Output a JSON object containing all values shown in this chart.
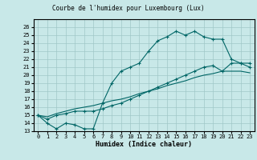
{
  "title": "Courbe de l'humidex pour Luxembourg (Lux)",
  "xlabel": "Humidex (Indice chaleur)",
  "bg_color": "#c8e8e8",
  "grid_color": "#a0c8c8",
  "line_color": "#006666",
  "xlim": [
    -0.5,
    23.5
  ],
  "ylim": [
    13,
    27
  ],
  "xticks": [
    0,
    1,
    2,
    3,
    4,
    5,
    6,
    7,
    8,
    9,
    10,
    11,
    12,
    13,
    14,
    15,
    16,
    17,
    18,
    19,
    20,
    21,
    22,
    23
  ],
  "yticks": [
    13,
    14,
    15,
    16,
    17,
    18,
    19,
    20,
    21,
    22,
    23,
    24,
    25,
    26
  ],
  "curve1_x": [
    0,
    1,
    2,
    3,
    4,
    5,
    6,
    7,
    8,
    9,
    10,
    11,
    12,
    13,
    14,
    15,
    16,
    17,
    18,
    19,
    20,
    21,
    22,
    23
  ],
  "curve1_y": [
    15.0,
    14.0,
    13.3,
    14.0,
    13.8,
    13.3,
    13.3,
    16.5,
    19.0,
    20.5,
    21.0,
    21.5,
    23.0,
    24.3,
    24.8,
    25.5,
    25.0,
    25.5,
    24.8,
    24.5,
    24.5,
    22.0,
    21.5,
    21.0
  ],
  "curve2_x": [
    0,
    1,
    2,
    3,
    4,
    5,
    6,
    7,
    8,
    9,
    10,
    11,
    12,
    13,
    14,
    15,
    16,
    17,
    18,
    19,
    20,
    21,
    22,
    23
  ],
  "curve2_y": [
    15.0,
    14.5,
    15.0,
    15.2,
    15.5,
    15.5,
    15.5,
    15.8,
    16.2,
    16.5,
    17.0,
    17.5,
    18.0,
    18.5,
    19.0,
    19.5,
    20.0,
    20.5,
    21.0,
    21.2,
    20.5,
    21.5,
    21.5,
    21.5
  ],
  "curve3_x": [
    0,
    1,
    2,
    3,
    4,
    5,
    6,
    7,
    8,
    9,
    10,
    11,
    12,
    13,
    14,
    15,
    16,
    17,
    18,
    19,
    20,
    21,
    22,
    23
  ],
  "curve3_y": [
    15.0,
    14.8,
    15.2,
    15.5,
    15.8,
    16.0,
    16.2,
    16.5,
    16.8,
    17.0,
    17.3,
    17.7,
    18.0,
    18.3,
    18.7,
    19.0,
    19.3,
    19.7,
    20.0,
    20.2,
    20.5,
    20.5,
    20.5,
    20.3
  ],
  "tick_fontsize": 5.0,
  "xlabel_fontsize": 6.0,
  "title_fontsize": 5.5
}
